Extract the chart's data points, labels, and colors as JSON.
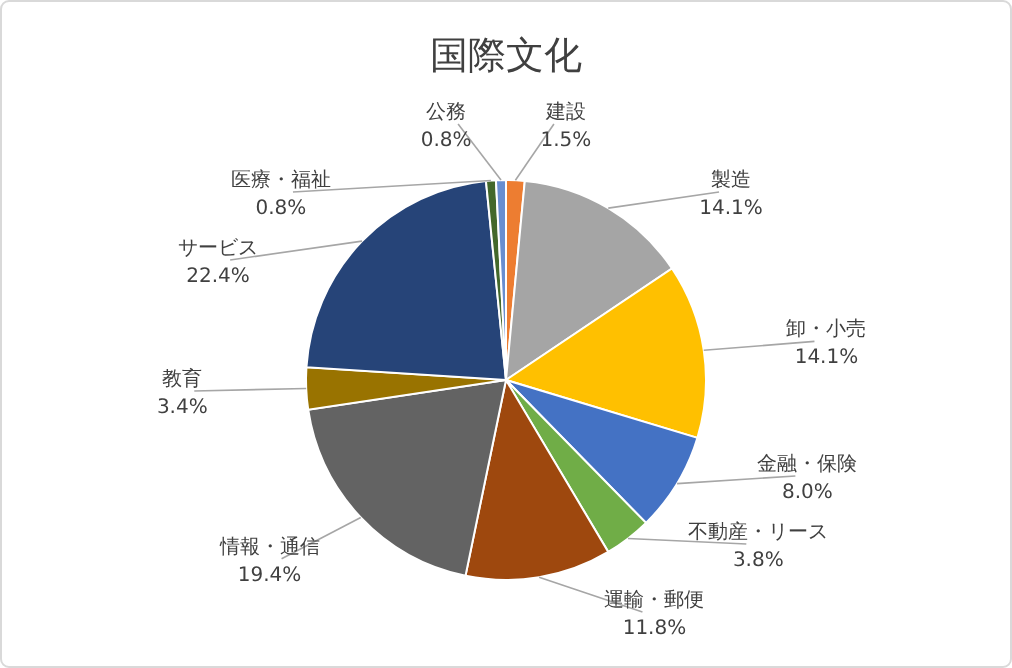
{
  "chart_data": {
    "type": "pie",
    "title": "国際文化",
    "categories": [
      "建設",
      "製造",
      "卸・小売",
      "金融・保険",
      "不動産・リース",
      "運輸・郵便",
      "情報・通信",
      "教育",
      "サービス",
      "医療・福祉",
      "公務"
    ],
    "values": [
      1.5,
      14.1,
      14.1,
      8.0,
      3.8,
      11.8,
      19.4,
      3.4,
      22.4,
      0.8,
      0.8
    ],
    "value_labels": [
      "1.5%",
      "14.1%",
      "14.1%",
      "8.0%",
      "3.8%",
      "11.8%",
      "19.4%",
      "3.4%",
      "22.4%",
      "0.8%",
      "0.8%"
    ],
    "colors": [
      "#ed7d31",
      "#a5a5a5",
      "#ffc000",
      "#4472c4",
      "#70ad47",
      "#9e480e",
      "#636363",
      "#997300",
      "#264478",
      "#43682b",
      "#698ed0"
    ]
  }
}
